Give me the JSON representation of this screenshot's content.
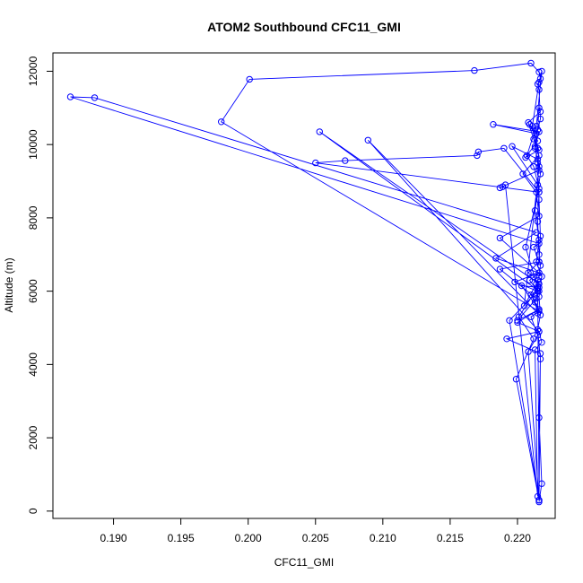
{
  "chart_data": {
    "type": "scatter",
    "title": "ATOM2 Southbound CFC11_GMI",
    "xlabel": "CFC11_GMI",
    "ylabel": "Altitude (m)",
    "xlim": [
      0.1855,
      0.2228
    ],
    "ylim": [
      -200,
      12500
    ],
    "x_ticks": [
      0.19,
      0.195,
      0.2,
      0.205,
      0.21,
      0.215,
      0.22
    ],
    "x_tick_labels": [
      "0.190",
      "0.195",
      "0.200",
      "0.205",
      "0.210",
      "0.215",
      "0.220"
    ],
    "y_ticks": [
      0,
      2000,
      4000,
      6000,
      8000,
      10000,
      12000
    ],
    "y_tick_labels": [
      "0",
      "2000",
      "4000",
      "6000",
      "8000",
      "10000",
      "12000"
    ],
    "grid": false,
    "series_color": "#0000ff",
    "series": [
      {
        "mode": "lines+markers",
        "x": [
          0.2216,
          0.2218,
          0.2216,
          0.2217,
          0.2215,
          0.2217,
          0.2216,
          0.2218,
          0.2214,
          0.2216,
          0.2213,
          0.2217,
          0.2215,
          0.2211,
          0.2216,
          0.2218,
          0.2214,
          0.2207,
          0.2212,
          0.2216,
          0.2206,
          0.2215,
          0.2201,
          0.2212,
          0.2199,
          0.2216,
          0.2194,
          0.2215,
          0.2209,
          0.2216,
          0.2187,
          0.2216,
          0.2214,
          0.2204,
          0.2216,
          0.2208,
          0.2217,
          0.2216,
          0.2215,
          0.2213,
          0.2216,
          0.2205,
          0.2214,
          0.2216,
          0.2203,
          0.2216,
          0.22,
          0.2214,
          0.2187,
          0.2216,
          0.2212,
          0.2216,
          0.1868,
          0.1886,
          0.2214,
          0.2184,
          0.2216,
          0.2198,
          0.2215,
          0.221,
          0.2216,
          0.22,
          0.2216,
          0.2192,
          0.2217,
          0.2216,
          0.2208,
          0.2215,
          0.221,
          0.2216,
          0.198,
          0.2001,
          0.2168,
          0.221,
          0.2216,
          0.2217,
          0.2215,
          0.2216,
          0.2217,
          0.2215,
          0.2212,
          0.2216,
          0.2206,
          0.2215,
          0.2209,
          0.2214,
          0.2182,
          0.2216,
          0.2213,
          0.2215,
          0.2216,
          0.2217,
          0.2216,
          0.2208,
          0.2212,
          0.2216,
          0.2053,
          0.2216,
          0.2213,
          0.2215,
          0.2089,
          0.2216,
          0.2218,
          0.2213,
          0.2215,
          0.2191,
          0.2189,
          0.2187,
          0.2216,
          0.2215,
          0.2196,
          0.2215,
          0.2216,
          0.219,
          0.2171,
          0.217,
          0.2072,
          0.205,
          0.2216,
          0.2215,
          0.2216,
          0.2217,
          0.2216,
          0.2215,
          0.2216
        ],
        "y": [
          250,
          750,
          2550,
          4150,
          4950,
          5350,
          5850,
          6400,
          6800,
          7400,
          8200,
          9200,
          9900,
          10500,
          11700,
          12000,
          10500,
          9700,
          9400,
          8800,
          7200,
          6100,
          5300,
          4700,
          3600,
          300,
          5200,
          6000,
          6300,
          6500,
          7450,
          8050,
          8700,
          9200,
          9700,
          10600,
          10900,
          11000,
          10400,
          9900,
          9400,
          5600,
          6200,
          6100,
          6150,
          5500,
          5200,
          5800,
          6600,
          6800,
          7200,
          7300,
          11300,
          11280,
          7600,
          6900,
          6500,
          6250,
          6000,
          5900,
          5500,
          5150,
          4900,
          4700,
          4300,
          300,
          4350,
          4800,
          5300,
          5450,
          10620,
          11780,
          12020,
          12220,
          11980,
          11800,
          11650,
          11500,
          10700,
          10400,
          10150,
          9850,
          9650,
          10100,
          10550,
          10300,
          10550,
          10350,
          9950,
          9500,
          8500,
          7500,
          6800,
          6500,
          6400,
          6200,
          10350,
          6000,
          5700,
          5400,
          10120,
          4900,
          4600,
          4400,
          400,
          8900,
          8850,
          8820,
          9300,
          9600,
          9950,
          8900,
          8700,
          9900,
          9800,
          9700,
          9560,
          9500,
          8700,
          7900,
          7000,
          6700,
          6400,
          6300,
          300
        ]
      }
    ]
  }
}
